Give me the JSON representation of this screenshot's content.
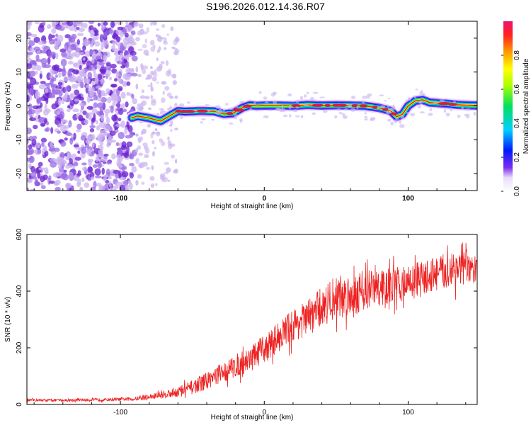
{
  "title": "S196.2026.012.14.36.R07",
  "colors": {
    "snr_line": "#ee2222",
    "speckle_dark": "#6a1fd0",
    "speckle_light": "#cbb4f0",
    "spectral_core": "#e01a3a",
    "axis": "#000000"
  },
  "chart_data": [
    {
      "type": "heatmap",
      "title": "S196.2026.012.14.36.R07",
      "xlabel": "Height of straight line (km)",
      "ylabel": "Frequency (Hz)",
      "xlim": [
        -165,
        148
      ],
      "ylim": [
        -25,
        25
      ],
      "xticks": [
        -100,
        0,
        100
      ],
      "yticks": [
        -20,
        -10,
        0,
        10,
        20
      ],
      "xtick_labels": [
        "-100",
        "0",
        "100"
      ],
      "ytick_labels": [
        "-20",
        "-10",
        "0",
        "10",
        "20"
      ],
      "grid": false,
      "noise_region_x": [
        -165,
        -90
      ],
      "sparse_noise_region_x": [
        -90,
        -60
      ],
      "ridge": {
        "x": [
          -92,
          -88,
          -80,
          -72,
          -66,
          -60,
          -55,
          -45,
          -35,
          -28,
          -22,
          -15,
          -10,
          -5,
          0,
          10,
          20,
          30,
          40,
          50,
          60,
          70,
          80,
          88,
          92,
          96,
          100,
          105,
          110,
          115,
          125,
          135,
          148
        ],
        "y": [
          -3.5,
          -3.0,
          -3.6,
          -4.5,
          -3.0,
          -1.5,
          -1.7,
          -1.5,
          -1.6,
          -2.4,
          -2.2,
          -0.5,
          0.2,
          0.0,
          0.1,
          0.1,
          0.0,
          0.3,
          0.1,
          0.2,
          0.1,
          0.0,
          -0.6,
          -1.5,
          -3.2,
          -2.5,
          0.0,
          1.5,
          1.8,
          1.0,
          0.7,
          0.3,
          0.1
        ]
      },
      "colorbar": {
        "label": "Normalized spectral amplitude",
        "range": [
          0,
          1
        ],
        "ticks": [
          0.0,
          0.2,
          0.4,
          0.6,
          0.8
        ],
        "tick_labels": [
          "0.0",
          "0.2",
          "0.4",
          "0.6",
          "0.8"
        ],
        "colormap": [
          "#ffffff",
          "#7a2cf0",
          "#0018ff",
          "#00d0ff",
          "#00e060",
          "#a8ff00",
          "#ffff00",
          "#ff9900",
          "#ff2020",
          "#ee1170"
        ]
      }
    },
    {
      "type": "line",
      "xlabel": "Height of straight line (km)",
      "ylabel": "SNR (10 * v/v)",
      "xlim": [
        -165,
        148
      ],
      "ylim": [
        0,
        600
      ],
      "xticks": [
        -100,
        0,
        100
      ],
      "yticks": [
        0,
        200,
        400,
        600
      ],
      "xtick_labels": [
        "-100",
        "0",
        "100"
      ],
      "ytick_labels": [
        "0",
        "200",
        "400",
        "600"
      ],
      "grid": false,
      "series": [
        {
          "name": "SNR",
          "color": "#ee2222",
          "x": [
            -165,
            -140,
            -120,
            -100,
            -90,
            -80,
            -70,
            -60,
            -50,
            -40,
            -30,
            -20,
            -10,
            0,
            10,
            20,
            30,
            40,
            50,
            60,
            70,
            80,
            90,
            100,
            110,
            120,
            130,
            140,
            148
          ],
          "y": [
            15,
            15,
            16,
            18,
            20,
            26,
            35,
            45,
            60,
            85,
            110,
            135,
            160,
            195,
            240,
            280,
            305,
            345,
            380,
            390,
            405,
            410,
            420,
            430,
            445,
            460,
            475,
            480,
            470
          ],
          "noise_amplitude": [
            5,
            5,
            6,
            6,
            8,
            12,
            15,
            22,
            28,
            35,
            40,
            45,
            50,
            55,
            60,
            65,
            70,
            80,
            85,
            85,
            80,
            75,
            70,
            70,
            70,
            70,
            70,
            65,
            60
          ]
        }
      ]
    }
  ]
}
